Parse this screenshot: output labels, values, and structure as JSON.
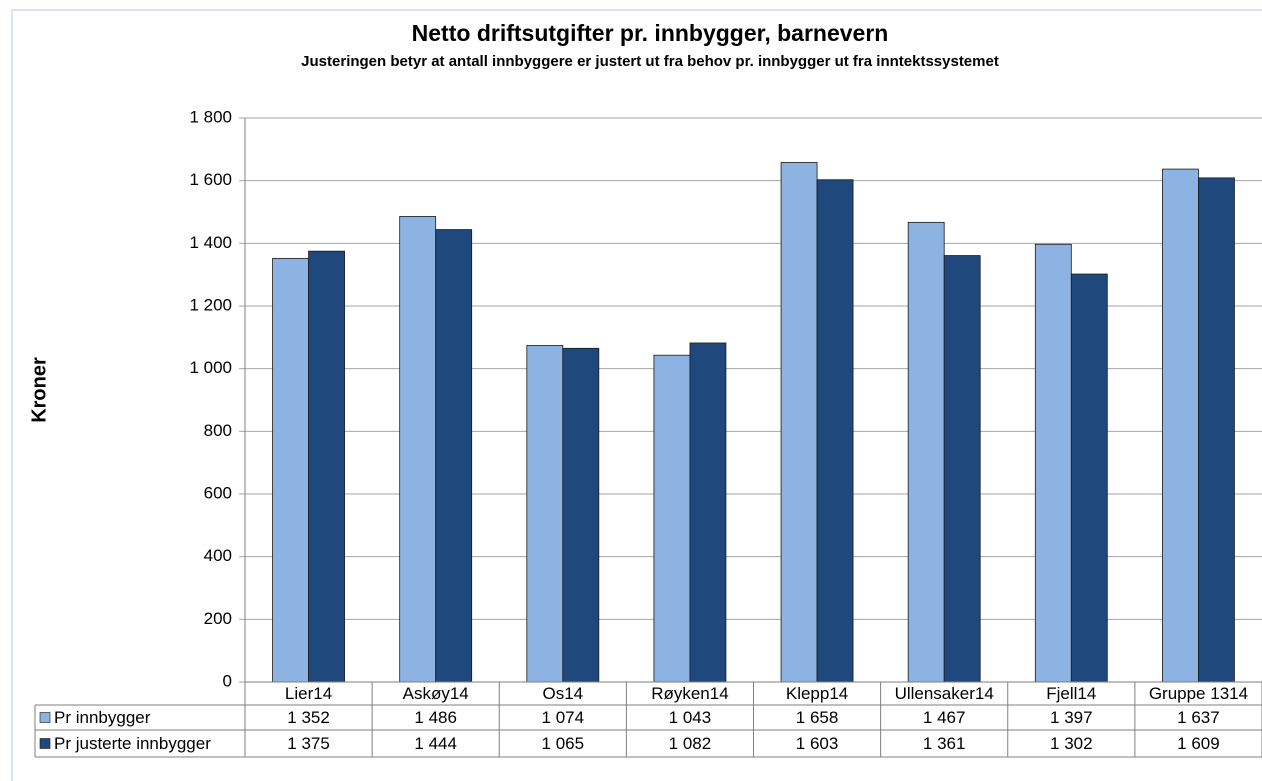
{
  "chart_data": {
    "type": "bar",
    "title": "Netto driftsutgifter pr. innbygger, barnevern",
    "subtitle": "Justeringen betyr at antall innbyggere er justert ut fra behov pr. innbygger ut fra inntektssystemet",
    "y_label": "Kroner",
    "categories": [
      "Lier14",
      "Askøy14",
      "Os14",
      "Røyken14",
      "Klepp14",
      "Ullensaker14",
      "Fjell14",
      "Gruppe 1314"
    ],
    "series": [
      {
        "name": "Pr innbygger",
        "color": "#8db3e2",
        "values": [
          1352,
          1486,
          1074,
          1043,
          1658,
          1467,
          1397,
          1637
        ],
        "value_labels": [
          "1 352",
          "1 486",
          "1 074",
          "1 043",
          "1 658",
          "1 467",
          "1 397",
          "1 637"
        ]
      },
      {
        "name": "Pr justerte innbygger",
        "color": "#1f497d",
        "values": [
          1375,
          1444,
          1065,
          1082,
          1603,
          1361,
          1302,
          1609
        ],
        "value_labels": [
          "1 375",
          "1 444",
          "1 065",
          "1 082",
          "1 603",
          "1 361",
          "1 302",
          "1 609"
        ]
      }
    ],
    "ylim": [
      0,
      1800
    ],
    "yticks": [
      0,
      200,
      400,
      600,
      800,
      {
        "value": 1000,
        "label": "1 000"
      },
      {
        "value": 1200,
        "label": "1 200"
      },
      {
        "value": 1400,
        "label": "1 400"
      },
      {
        "value": 1600,
        "label": "1 600"
      },
      {
        "value": 1800,
        "label": "1 800"
      }
    ],
    "grid": true
  }
}
